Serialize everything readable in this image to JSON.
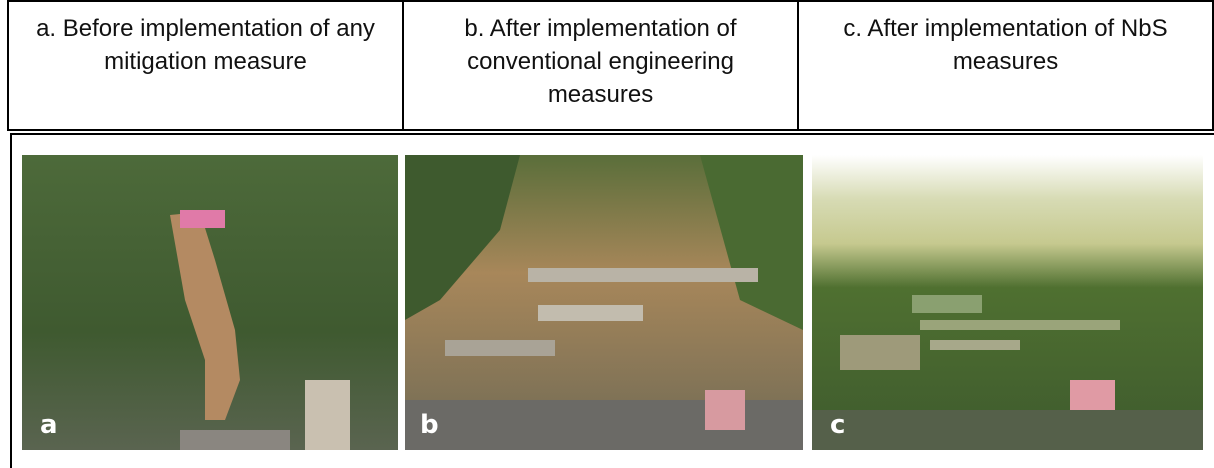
{
  "table": {
    "headers": [
      "a. Before implementation of any mitigation measure",
      "b. After implementation of conventional engineering measures",
      "c. After implementation of NbS measures"
    ],
    "photo_labels": [
      "a",
      "b",
      "c"
    ]
  }
}
